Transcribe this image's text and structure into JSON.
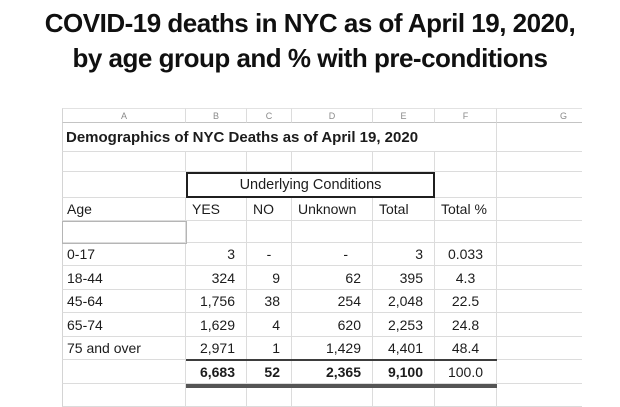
{
  "title": {
    "line1": "COVID-19 deaths in NYC as of April 19, 2020,",
    "line2": "by age group and % with pre-conditions"
  },
  "sheet": {
    "column_letters": [
      "A",
      "B",
      "C",
      "D",
      "E",
      "F",
      "G"
    ],
    "title": "Demographics of NYC Deaths as of April 19, 2020",
    "conditions_banner": "Underlying Conditions",
    "headers": {
      "age": "Age",
      "yes": "YES",
      "no": "NO",
      "unknown": "Unknown",
      "total": "Total",
      "total_pct": "Total %"
    },
    "rows": [
      {
        "age": "0-17",
        "yes": "3",
        "no": "-",
        "unknown": "-",
        "total": "3",
        "total_pct": "0.033"
      },
      {
        "age": "18-44",
        "yes": "324",
        "no": "9",
        "unknown": "62",
        "total": "395",
        "total_pct": "4.3"
      },
      {
        "age": "45-64",
        "yes": "1,756",
        "no": "38",
        "unknown": "254",
        "total": "2,048",
        "total_pct": "22.5"
      },
      {
        "age": "65-74",
        "yes": "1,629",
        "no": "4",
        "unknown": "620",
        "total": "2,253",
        "total_pct": "24.8"
      },
      {
        "age": "75 and over",
        "yes": "2,971",
        "no": "1",
        "unknown": "1,429",
        "total": "4,401",
        "total_pct": "48.4"
      }
    ],
    "totals": {
      "yes": "6,683",
      "no": "52",
      "unknown": "2,365",
      "total": "9,100",
      "total_pct": "100.0"
    }
  },
  "colors": {
    "gridline": "#dcdcdc",
    "box_border": "#1f1f1f",
    "totals_rule": "#3d3d3d",
    "totals_thick_rule": "#555555",
    "column_letter_text": "#8a8a8a",
    "cell_text": "#1c1c1c"
  }
}
